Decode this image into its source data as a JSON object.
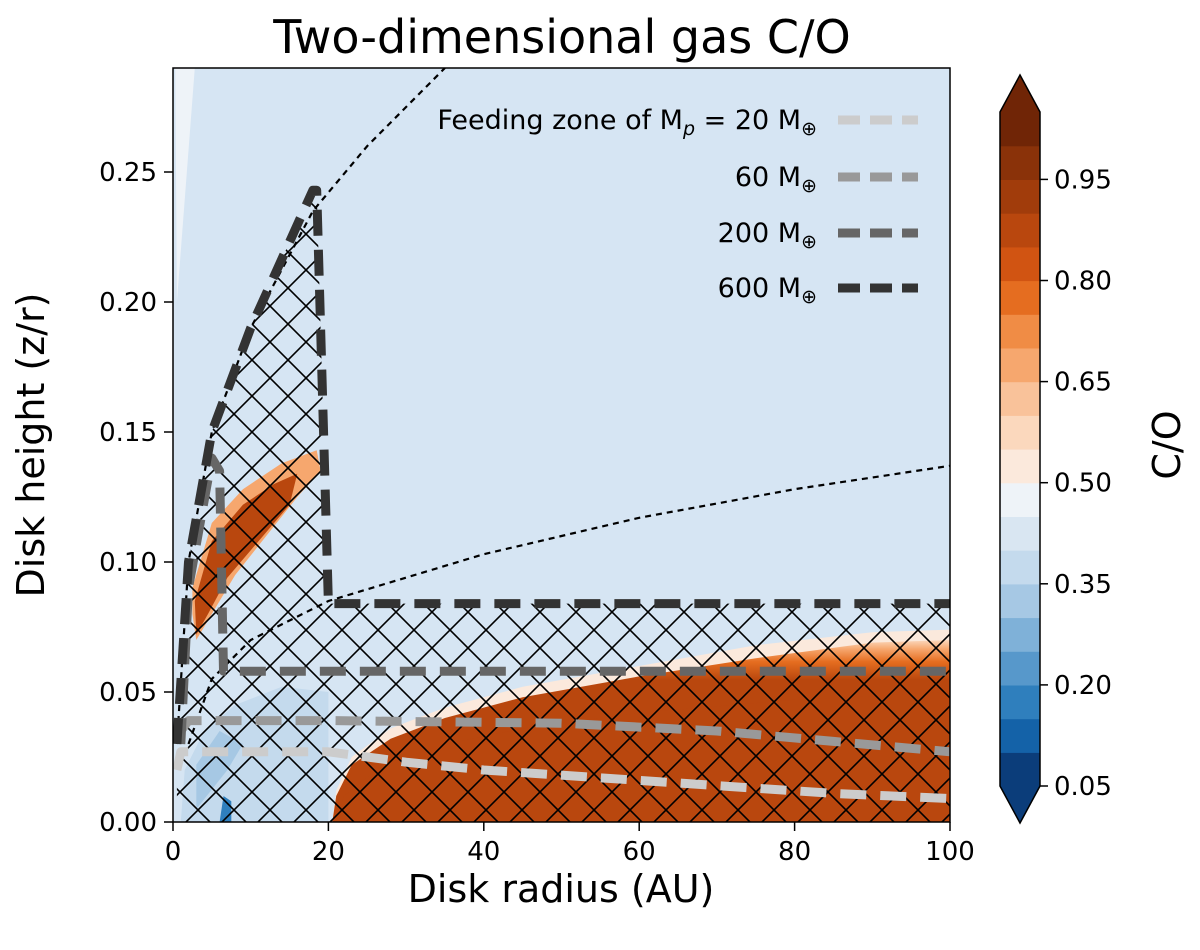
{
  "chart_data": {
    "type": "heatmap",
    "title": "Two-dimensional gas C/O",
    "xlabel": "Disk radius (AU)",
    "ylabel": "Disk height (z/r)",
    "xlim": [
      0,
      100
    ],
    "ylim": [
      0,
      0.29
    ],
    "x_ticks": [
      0,
      20,
      40,
      60,
      80,
      100
    ],
    "y_ticks": [
      0.0,
      0.05,
      0.1,
      0.15,
      0.2,
      0.25
    ],
    "colorbar": {
      "label": "C/O",
      "range": [
        0.05,
        1.05
      ],
      "ticks": [
        0.05,
        0.2,
        0.35,
        0.5,
        0.65,
        0.8,
        0.95
      ],
      "colormap": "diverging blue-white-orange",
      "colors": [
        "#0b3d7a",
        "#1462a8",
        "#2f7fbd",
        "#5798cb",
        "#7fb1d8",
        "#a6c8e4",
        "#c4daed",
        "#d9e6f2",
        "#eef3f8",
        "#fbe9dc",
        "#fbd8bd",
        "#f9c29a",
        "#f6a76e",
        "#f08c45",
        "#e56d20",
        "#d15412",
        "#b9470e",
        "#a13c0b",
        "#8a3209",
        "#702506"
      ],
      "background_color": "#d6e5f3",
      "high_co_color": "#b9470e"
    },
    "regions": [
      {
        "name": "background",
        "co": 0.47
      },
      {
        "name": "inner elevated high C/O tongue",
        "r_range": [
          2,
          19
        ],
        "z_range": [
          0.06,
          0.14
        ],
        "co": 0.95
      },
      {
        "name": "midplane high C/O band",
        "r_range": [
          20,
          100
        ],
        "z_range": [
          0.0,
          0.07
        ],
        "co": 0.98
      },
      {
        "name": "inner midplane low C/O",
        "r_range": [
          1,
          20
        ],
        "z_range": [
          0.0,
          0.05
        ],
        "co": 0.4
      }
    ],
    "dashed_curves": [
      {
        "name": "upper boundary",
        "points": [
          [
            0.5,
            0.03
          ],
          [
            2,
            0.1
          ],
          [
            5,
            0.15
          ],
          [
            10,
            0.19
          ],
          [
            18,
            0.235
          ],
          [
            25,
            0.26
          ],
          [
            35,
            0.29
          ]
        ]
      },
      {
        "name": "middle boundary",
        "points": [
          [
            2,
            0.03
          ],
          [
            5,
            0.055
          ],
          [
            10,
            0.07
          ],
          [
            20,
            0.085
          ],
          [
            40,
            0.103
          ],
          [
            60,
            0.117
          ],
          [
            80,
            0.128
          ],
          [
            100,
            0.137
          ]
        ]
      }
    ],
    "legend": {
      "position": "top-right",
      "entries": [
        {
          "label": "Feeding zone of M$_p$ = 20 M$_\\oplus$",
          "label_prefix": "Feeding zone of M",
          "label_sub": "p",
          "label_mid": " = 20 M",
          "label_symbol": "⊕",
          "color": "#cccccc"
        },
        {
          "label": "60 M$_\\oplus$",
          "label_prefix": "60 M",
          "label_symbol": "⊕",
          "color": "#999999"
        },
        {
          "label": "200 M$_\\oplus$",
          "label_prefix": "200 M",
          "label_symbol": "⊕",
          "color": "#666666"
        },
        {
          "label": "600 M$_\\oplus$",
          "label_prefix": "600 M",
          "label_symbol": "⊕",
          "color": "#333333"
        }
      ]
    },
    "feeding_zones": [
      {
        "mass": "20 M⊕",
        "color": "#cccccc",
        "points": [
          [
            0.5,
            0.02
          ],
          [
            1,
            0.027
          ],
          [
            20,
            0.027
          ],
          [
            30,
            0.023
          ],
          [
            40,
            0.02
          ],
          [
            55,
            0.017
          ],
          [
            70,
            0.014
          ],
          [
            85,
            0.011
          ],
          [
            100,
            0.009
          ]
        ]
      },
      {
        "mass": "60 M⊕",
        "color": "#999999",
        "points": [
          [
            1,
            0.035
          ],
          [
            2,
            0.039
          ],
          [
            20,
            0.039
          ],
          [
            50,
            0.038
          ],
          [
            70,
            0.035
          ],
          [
            85,
            0.031
          ],
          [
            100,
            0.027
          ]
        ]
      },
      {
        "mass": "200 M⊕",
        "color": "#666666",
        "points": [
          [
            1,
            0.03
          ],
          [
            2,
            0.09
          ],
          [
            5,
            0.14
          ],
          [
            6,
            0.135
          ],
          [
            6.5,
            0.058
          ],
          [
            100,
            0.058
          ]
        ]
      },
      {
        "mass": "600 M⊕",
        "color": "#333333",
        "points": [
          [
            0.5,
            0.03
          ],
          [
            2,
            0.1
          ],
          [
            5,
            0.15
          ],
          [
            10,
            0.19
          ],
          [
            18,
            0.243
          ],
          [
            18.5,
            0.243
          ],
          [
            20,
            0.084
          ],
          [
            100,
            0.084
          ]
        ]
      }
    ]
  }
}
